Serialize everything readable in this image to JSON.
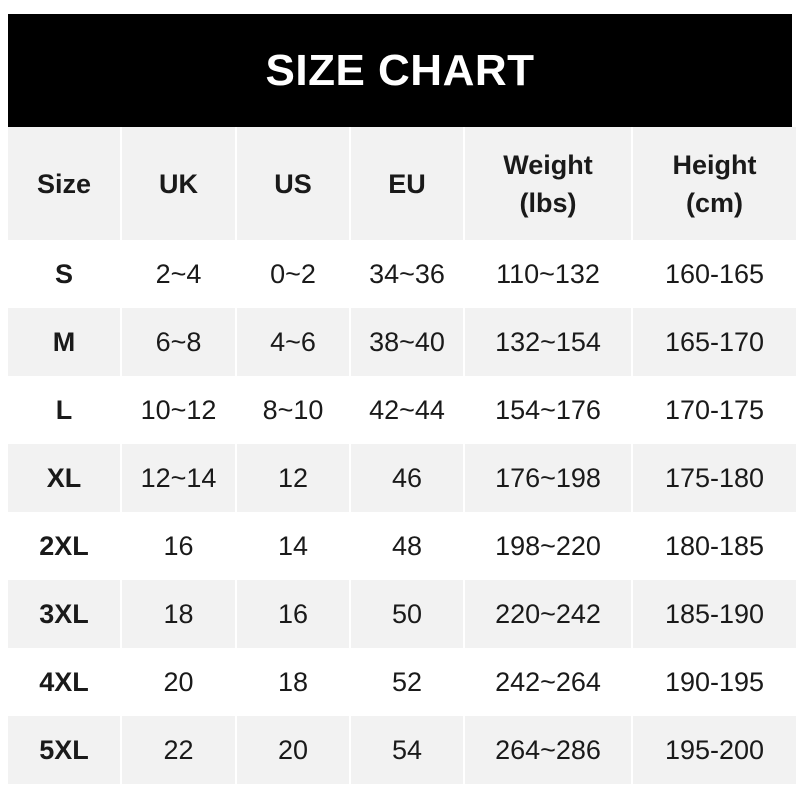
{
  "title": "SIZE CHART",
  "headers": [
    "Size",
    "UK",
    "US",
    "EU",
    "Weight\n(lbs)",
    "Height\n(cm)"
  ],
  "rows": [
    [
      "S",
      "2~4",
      "0~2",
      "34~36",
      "110~132",
      "160-165"
    ],
    [
      "M",
      "6~8",
      "4~6",
      "38~40",
      "132~154",
      "165-170"
    ],
    [
      "L",
      "10~12",
      "8~10",
      "42~44",
      "154~176",
      "170-175"
    ],
    [
      "XL",
      "12~14",
      "12",
      "46",
      "176~198",
      "175-180"
    ],
    [
      "2XL",
      "16",
      "14",
      "48",
      "198~220",
      "180-185"
    ],
    [
      "3XL",
      "18",
      "16",
      "50",
      "220~242",
      "185-190"
    ],
    [
      "4XL",
      "20",
      "18",
      "52",
      "242~264",
      "190-195"
    ],
    [
      "5XL",
      "22",
      "20",
      "54",
      "264~286",
      "195-200"
    ]
  ],
  "colors": {
    "banner": "#000000",
    "stripe": "#f2f2f2",
    "text": "#1a1a1a"
  }
}
